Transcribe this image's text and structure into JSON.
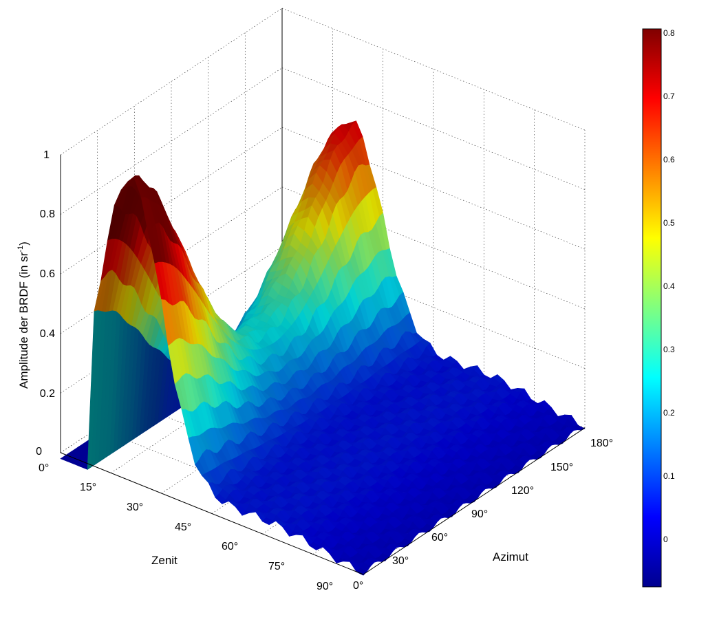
{
  "chart_data": {
    "type": "surface",
    "zlabel_text": "Amplitude der BRDF (in sr",
    "zlabel_sup": "-1",
    "zlabel_close": ")",
    "xlabel": "Zenit",
    "ylabel": "Azimut",
    "zlim": [
      0,
      1
    ],
    "zenit_range": [
      0,
      90
    ],
    "azimut_range": [
      0,
      180
    ],
    "z_ticks": [
      "0",
      "0.2",
      "0.4",
      "0.6",
      "0.8",
      "1"
    ],
    "zenit_ticks": [
      "0°",
      "15°",
      "30°",
      "45°",
      "60°",
      "75°",
      "90°"
    ],
    "azimut_ticks": [
      "0°",
      "30°",
      "60°",
      "90°",
      "120°",
      "150°",
      "180°"
    ],
    "colorbar": {
      "colormap": "jet",
      "range": [
        -0.08,
        0.81
      ],
      "ticks": [
        "0",
        "0.1",
        "0.2",
        "0.3",
        "0.4",
        "0.5",
        "0.6",
        "0.7",
        "0.8"
      ]
    },
    "peaks": [
      {
        "zenit": 20,
        "azimut": 0,
        "amplitude": 0.78
      },
      {
        "zenit": 20,
        "azimut": 180,
        "amplitude": 0.6
      }
    ],
    "grid": true
  }
}
